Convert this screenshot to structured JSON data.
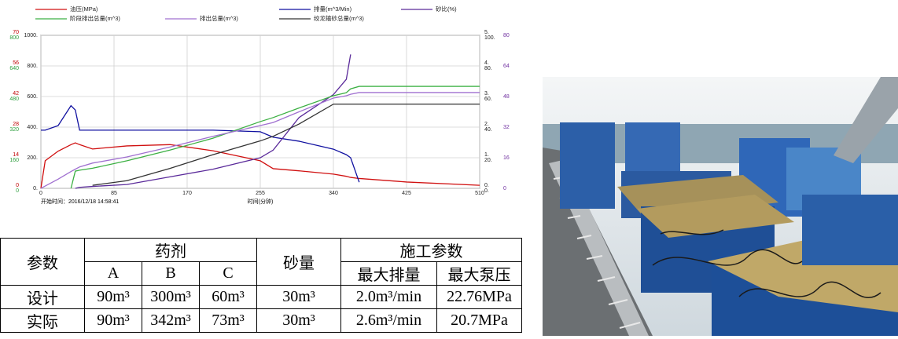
{
  "chart_data": {
    "type": "line",
    "legend": [
      "油压(MPa)",
      "排量(m^3/Min)",
      "砂比(%)",
      "阶段排出总量(m^3)",
      "排出总量(m^3)",
      "绞龙输砂总量(m^3)"
    ],
    "start_time": "开始时间：2016/12/18 14:58:41",
    "xlabel": "时间(分钟)",
    "xlim": [
      0,
      510
    ],
    "xticks": [
      0,
      85,
      170,
      255,
      340,
      425,
      510
    ],
    "grid": true,
    "y_axes": [
      {
        "side": "left",
        "color": "#c00000",
        "ylim": [
          0,
          70
        ],
        "yticks": [
          0,
          14,
          28,
          42,
          56,
          70
        ]
      },
      {
        "side": "left",
        "color": "#2e9e3e",
        "ylim": [
          0,
          800
        ],
        "yticks": [
          0,
          160,
          320,
          480,
          640,
          800
        ]
      },
      {
        "side": "left",
        "color": "#222222",
        "ylim": [
          0,
          1000
        ],
        "yticks": [
          {
            "value": 0,
            "label": "0."
          },
          {
            "value": 200,
            "label": "200."
          },
          {
            "value": 400,
            "label": "400."
          },
          {
            "value": 600,
            "label": "600."
          },
          {
            "value": 800,
            "label": "800."
          },
          {
            "value": 1000,
            "label": "1000."
          }
        ]
      },
      {
        "side": "right",
        "color": "#222222",
        "ylim": [
          0,
          5
        ],
        "yticks": [
          {
            "value": 0,
            "label": "0."
          },
          {
            "value": 1,
            "label": "1."
          },
          {
            "value": 2,
            "label": "2."
          },
          {
            "value": 3,
            "label": "3."
          },
          {
            "value": 4,
            "label": "4."
          },
          {
            "value": 5,
            "label": "5."
          }
        ]
      },
      {
        "side": "right",
        "color": "#222222",
        "ylim": [
          0,
          100
        ],
        "yticks": [
          {
            "value": 0,
            "label": "0."
          },
          {
            "value": 20,
            "label": "20."
          },
          {
            "value": 40,
            "label": "40."
          },
          {
            "value": 60,
            "label": "60."
          },
          {
            "value": 80,
            "label": "80."
          },
          {
            "value": 100,
            "label": "100."
          }
        ]
      },
      {
        "side": "right",
        "color": "#7030a0",
        "ylim": [
          0,
          80
        ],
        "yticks": [
          0,
          16,
          32,
          48,
          64,
          80
        ]
      }
    ],
    "x": [
      0,
      5,
      20,
      35,
      40,
      45,
      60,
      100,
      150,
      200,
      255,
      270,
      300,
      340,
      355,
      360,
      370,
      425,
      510
    ],
    "series": [
      {
        "name": "油压(MPa)",
        "color": "#d01010",
        "axis": 0,
        "values": [
          0,
          12.6,
          17,
          20,
          20.8,
          20,
          18,
          19.4,
          20,
          17.2,
          12.6,
          9,
          8,
          6.5,
          5.5,
          5,
          4.5,
          2.9,
          1.4
        ]
      },
      {
        "name": "排量(m^3/Min)",
        "color": "#1010a0",
        "axis": 3,
        "values": [
          1.9,
          1.9,
          2.05,
          2.7,
          2.56,
          1.9,
          1.9,
          1.9,
          1.9,
          1.9,
          1.85,
          1.67,
          1.54,
          1.28,
          1.1,
          1.0,
          0.2,
          null,
          null
        ]
      },
      {
        "name": "砂比(%)",
        "color": "#5a2a9a",
        "axis": 5,
        "values": [
          null,
          null,
          null,
          null,
          0,
          0.5,
          1,
          2,
          6,
          10,
          16,
          20,
          37,
          49,
          57,
          70,
          null,
          null,
          null
        ]
      },
      {
        "name": "阶段排出总量(m^3)",
        "color": "#3cb043",
        "axis": 1,
        "values": [
          null,
          null,
          null,
          0,
          90,
          95,
          105,
          144,
          200,
          262,
          349,
          370,
          420,
          484,
          500,
          520,
          533,
          533,
          533
        ]
      },
      {
        "name": "排出总量(m^3)",
        "color": "#a070d0",
        "axis": 2,
        "values": [
          0,
          15,
          60,
          110,
          125,
          140,
          165,
          205,
          270,
          340,
          410,
          430,
          500,
          590,
          605,
          615,
          626,
          626,
          626
        ]
      },
      {
        "name": "绞龙输砂总量(m^3)",
        "color": "#333333",
        "axis": 4,
        "values": [
          null,
          null,
          null,
          null,
          null,
          null,
          2,
          5,
          13,
          22,
          31,
          34,
          42,
          55,
          55,
          55,
          55,
          55,
          55
        ]
      }
    ]
  },
  "table": {
    "rows": [
      [
        "参数",
        "药剂",
        "砂量",
        "施工参数"
      ],
      [
        "A",
        "B",
        "C",
        "最大排量",
        "最大泵压"
      ],
      [
        "设计",
        "90m³",
        "300m³",
        "60m³",
        "30m³",
        "2.0m³/min",
        "22.76MPa"
      ],
      [
        "实际",
        "90m³",
        "342m³",
        "73m³",
        "30m³",
        "2.6m³/min",
        "20.7MPa"
      ]
    ]
  }
}
